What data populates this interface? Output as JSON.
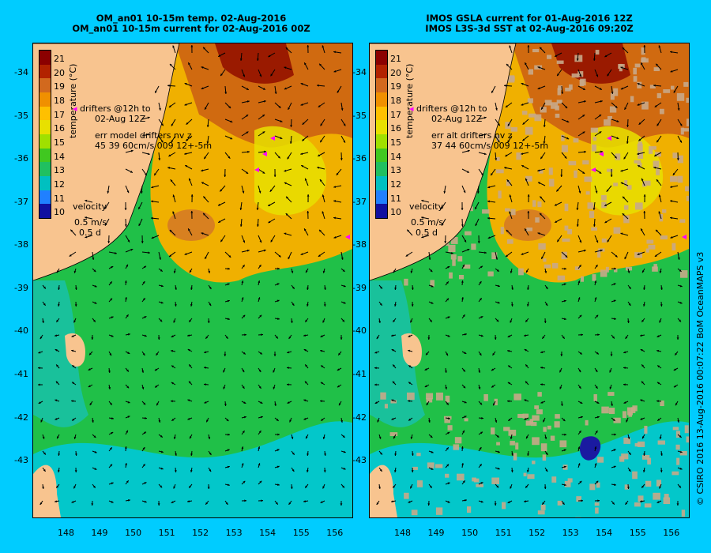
{
  "colors": {
    "background": "#00ccff",
    "land": "#f8c48f",
    "arrow": "#000000",
    "drifter": "#ff00ff"
  },
  "panels": [
    {
      "id": "left",
      "title_line1": "OM_an01 10-15m temp. 02-Aug-2016",
      "title_line2": "OM_an01 10-15m current for 02-Aug-2016 00Z",
      "drifters_line1": "drifters @12h to",
      "drifters_line2": "02-Aug 12Z",
      "err_line1": "err model drifters nv z",
      "err_line2": "45 39 60cm/s 009 12+-5m",
      "velocity_label": "velocity",
      "velocity_scale": "0.5 m/s",
      "velocity_time": "0.5 d"
    },
    {
      "id": "right",
      "title_line1": "IMOS GSLA current for 01-Aug-2016 12Z",
      "title_line2": "IMOS L3S-3d SST at 02-Aug-2016 09:20Z",
      "drifters_line1": "drifters @12h to",
      "drifters_line2": "02-Aug 12Z",
      "err_line1": "err alt drifters nv z",
      "err_line2": "37 44 60cm/s 009 12+-5m",
      "velocity_label": "velocity",
      "velocity_scale": "0.5 m/s",
      "velocity_time": "0.5 d"
    }
  ],
  "colorbar": {
    "title": "temperature (°C)",
    "labels": [
      "21",
      "20",
      "19",
      "18",
      "17",
      "16",
      "15",
      "14",
      "13",
      "12",
      "11",
      "10"
    ],
    "stops": [
      "#8b0000",
      "#b22200",
      "#d2691e",
      "#f09000",
      "#ffc000",
      "#e8e000",
      "#a0e000",
      "#40c820",
      "#20c060",
      "#00c0c0",
      "#2080ff",
      "#1010a0"
    ]
  },
  "axes": {
    "y_ticks": [
      "-34",
      "-35",
      "-36",
      "-37",
      "-38",
      "-39",
      "-40",
      "-41",
      "-42",
      "-43"
    ],
    "x_ticks": [
      "148",
      "149",
      "150",
      "151",
      "152",
      "153",
      "154",
      "155",
      "156"
    ],
    "lon_range": [
      147.0,
      156.5
    ],
    "lat_range": [
      -33.3,
      -44.3
    ]
  },
  "credit": "© CSIRO 2016  13-Aug-2016 00:07:22 BoM OceanMAPS v3"
}
